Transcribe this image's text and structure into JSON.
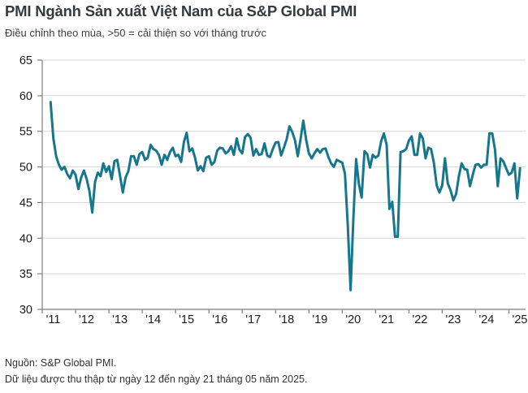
{
  "header": {
    "title": "PMI Ngành Sản xuất Việt Nam của S&P Global PMI",
    "subtitle": "Điều chỉnh theo mùa, >50 = cải thiện so với tháng trước"
  },
  "footer": {
    "source": "Nguồn: S&P Global PMI.",
    "note": "Dữ liệu được thu thập từ ngày 12 đến ngày 21 tháng 05 năm 2025."
  },
  "colors": {
    "line": "#16768C",
    "grid": "#D6D6D6",
    "axis": "#7F7F7F",
    "tick_text": "#1A1A1A",
    "title_text": "#333A42",
    "body_text": "#303030"
  },
  "chart_data": {
    "type": "line",
    "title": "PMI Ngành Sản xuất Việt Nam của S&P Global PMI",
    "subtitle": "Điều chỉnh theo mùa, >50 = cải thiện so với tháng trước",
    "source": "Nguồn: S&P Global PMI.",
    "note": "Dữ liệu được thu thập từ ngày 12 đến ngày 21 tháng 05 năm 2025.",
    "frequency": "monthly",
    "start": "2011-04",
    "end": "2025-05",
    "x_tick_labels": [
      "'11",
      "'12",
      "'13",
      "'14",
      "'15",
      "'16",
      "'17",
      "'18",
      "'19",
      "'20",
      "'21",
      "'22",
      "'23",
      "'24",
      "'25"
    ],
    "ylim": [
      30,
      65
    ],
    "yticks": [
      65,
      60,
      55,
      50,
      45,
      40,
      35,
      30
    ],
    "grid": "horizontal",
    "legend": false,
    "series": [
      {
        "name": "PMI Ngành Sản xuất Việt Nam",
        "color": "#16768C",
        "values": [
          59.1,
          54.0,
          51.5,
          50.3,
          49.6,
          50.0,
          49.0,
          48.4,
          49.5,
          48.9,
          46.9,
          48.5,
          49.5,
          48.3,
          46.6,
          43.6,
          47.9,
          49.2,
          48.7,
          50.5,
          49.3,
          50.1,
          48.3,
          50.8,
          51.0,
          48.8,
          46.4,
          48.5,
          49.4,
          51.5,
          51.5,
          50.3,
          51.8,
          52.1,
          51.0,
          51.3,
          53.1,
          52.5,
          52.3,
          51.7,
          50.3,
          51.7,
          51.0,
          52.1,
          52.7,
          51.5,
          51.7,
          50.7,
          53.5,
          54.8,
          52.2,
          52.6,
          51.3,
          49.5,
          50.1,
          49.4,
          51.3,
          51.5,
          50.3,
          50.7,
          52.3,
          52.7,
          52.6,
          51.9,
          52.2,
          52.9,
          51.7,
          54.0,
          52.4,
          51.9,
          54.2,
          54.6,
          54.1,
          51.6,
          52.5,
          51.7,
          51.8,
          53.3,
          51.6,
          51.4,
          52.5,
          53.4,
          53.5,
          51.6,
          52.7,
          53.9,
          55.7,
          54.9,
          53.7,
          51.5,
          53.9,
          56.5,
          53.8,
          51.9,
          51.2,
          51.9,
          52.5,
          52.0,
          52.5,
          52.6,
          51.4,
          50.5,
          50.0,
          51.0,
          50.8,
          50.6,
          49.0,
          41.9,
          32.7,
          42.7,
          51.1,
          47.6,
          45.7,
          52.2,
          51.8,
          49.9,
          51.7,
          51.3,
          51.6,
          53.6,
          54.7,
          53.1,
          44.1,
          45.1,
          40.2,
          40.2,
          52.1,
          52.2,
          52.5,
          53.7,
          54.3,
          51.7,
          51.7,
          54.7,
          54.0,
          51.2,
          52.7,
          52.5,
          50.6,
          47.4,
          46.4,
          47.4,
          51.2,
          47.7,
          46.7,
          45.3,
          46.2,
          48.7,
          50.5,
          49.7,
          49.6,
          47.3,
          48.9,
          50.3,
          50.4,
          49.9,
          50.3,
          50.3,
          54.7,
          54.7,
          52.4,
          47.3,
          51.2,
          50.8,
          49.8,
          48.9,
          49.2,
          50.5,
          45.6,
          49.8
        ]
      }
    ]
  }
}
